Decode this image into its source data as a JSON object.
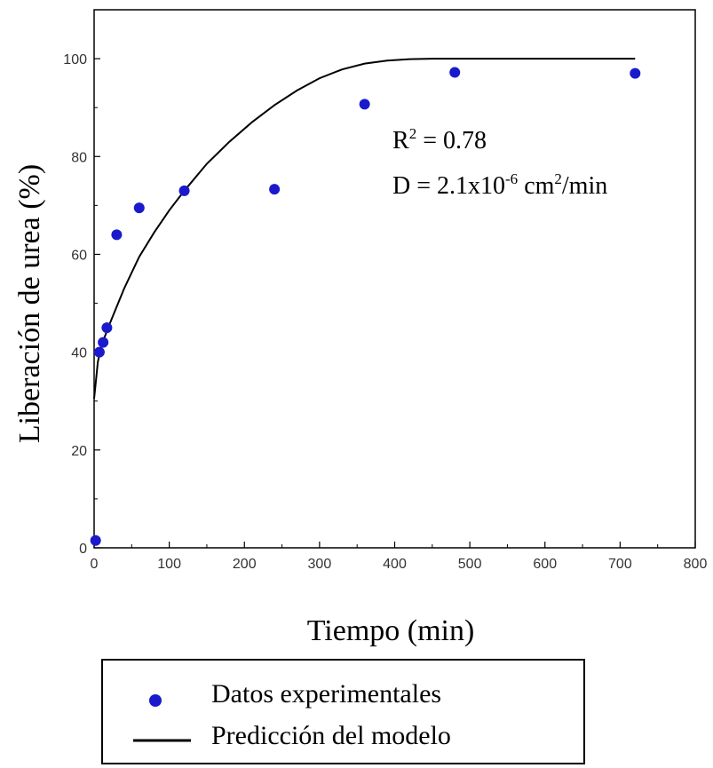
{
  "chart_data": {
    "type": "scatter",
    "xlabel": "Tiempo (min)",
    "ylabel": "Liberación de urea (%)",
    "xlim": [
      0,
      800
    ],
    "ylim": [
      0,
      110
    ],
    "x_ticks": [
      0,
      100,
      200,
      300,
      400,
      500,
      600,
      700,
      800
    ],
    "y_ticks": [
      0,
      20,
      40,
      60,
      80,
      100
    ],
    "x_tick_labels": [
      "0",
      "100",
      "200",
      "300",
      "400",
      "500",
      "600",
      "700",
      "800"
    ],
    "y_tick_labels": [
      "0",
      "20",
      "40",
      "60",
      "80",
      "100"
    ],
    "grid": false,
    "legend_position": "bottom-outside",
    "series": [
      {
        "name": "Datos experimentales",
        "kind": "scatter",
        "color": "#1a1acc",
        "x": [
          2,
          7,
          12,
          17,
          30,
          60,
          120,
          240,
          360,
          480,
          720
        ],
        "y": [
          1.5,
          40,
          42,
          45,
          64,
          69.5,
          73,
          73.3,
          90.7,
          97.2,
          97
        ],
        "style": "circle"
      },
      {
        "name": "Predicción del modelo",
        "kind": "line",
        "color": "#000000",
        "x": [
          0,
          5,
          10,
          20,
          40,
          60,
          80,
          100,
          120,
          150,
          180,
          210,
          240,
          270,
          300,
          330,
          360,
          390,
          420,
          450,
          480,
          540,
          600,
          660,
          720
        ],
        "y": [
          30.5,
          38,
          41.5,
          45.5,
          53,
          59.5,
          64.5,
          69,
          73,
          78.5,
          83,
          87,
          90.5,
          93.5,
          96,
          97.8,
          99,
          99.6,
          99.9,
          100,
          100,
          100,
          100,
          100,
          100
        ]
      }
    ],
    "annotations": {
      "r2_label": "R",
      "r2_sup": "2",
      "r2_value": " = 0.78",
      "d_prefix": "D =  2.1x10",
      "d_exp": "-6",
      "d_unit1": " cm",
      "d_unit_sup": "2",
      "d_unit2": "/min"
    }
  }
}
